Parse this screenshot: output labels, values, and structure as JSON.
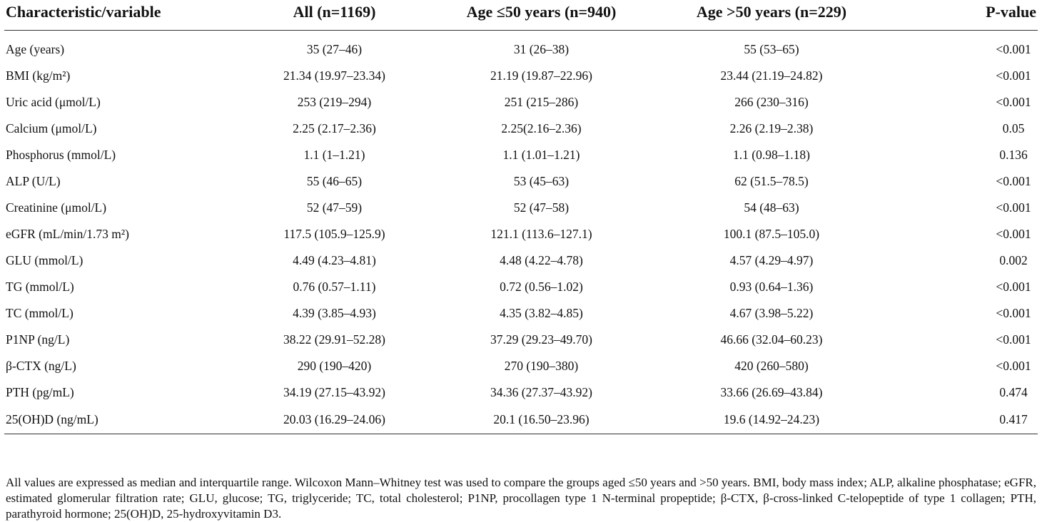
{
  "table": {
    "headers": [
      "Characteristic/variable",
      "All (n=1169)",
      "Age ≤50 years (n=940)",
      "Age >50 years (n=229)",
      "P-value"
    ],
    "rows": [
      {
        "label": "Age (years)",
        "all": "35 (27–46)",
        "le50": "31 (26–38)",
        "gt50": "55 (53–65)",
        "p": "<0.001"
      },
      {
        "label": "BMI (kg/m²)",
        "all": "21.34 (19.97–23.34)",
        "le50": "21.19 (19.87–22.96)",
        "gt50": "23.44 (21.19–24.82)",
        "p": "<0.001"
      },
      {
        "label": "Uric acid (μmol/L)",
        "all": "253 (219–294)",
        "le50": "251 (215–286)",
        "gt50": "266 (230–316)",
        "p": "<0.001"
      },
      {
        "label": "Calcium (μmol/L)",
        "all": "2.25 (2.17–2.36)",
        "le50": "2.25(2.16–2.36)",
        "gt50": "2.26 (2.19–2.38)",
        "p": "0.05"
      },
      {
        "label": "Phosphorus (mmol/L)",
        "all": "1.1 (1–1.21)",
        "le50": "1.1 (1.01–1.21)",
        "gt50": "1.1 (0.98–1.18)",
        "p": "0.136"
      },
      {
        "label": "ALP (U/L)",
        "all": "55 (46–65)",
        "le50": "53 (45–63)",
        "gt50": "62 (51.5–78.5)",
        "p": "<0.001"
      },
      {
        "label": "Creatinine (μmol/L)",
        "all": "52 (47–59)",
        "le50": "52 (47–58)",
        "gt50": "54 (48–63)",
        "p": "<0.001"
      },
      {
        "label": "eGFR (mL/min/1.73 m²)",
        "all": "117.5 (105.9–125.9)",
        "le50": "121.1 (113.6–127.1)",
        "gt50": "100.1 (87.5–105.0)",
        "p": "<0.001"
      },
      {
        "label": "GLU (mmol/L)",
        "all": "4.49 (4.23–4.81)",
        "le50": "4.48 (4.22–4.78)",
        "gt50": "4.57 (4.29–4.97)",
        "p": "0.002"
      },
      {
        "label": "TG (mmol/L)",
        "all": "0.76 (0.57–1.11)",
        "le50": "0.72 (0.56–1.02)",
        "gt50": "0.93 (0.64–1.36)",
        "p": "<0.001"
      },
      {
        "label": "TC (mmol/L)",
        "all": "4.39 (3.85–4.93)",
        "le50": "4.35 (3.82–4.85)",
        "gt50": "4.67 (3.98–5.22)",
        "p": "<0.001"
      },
      {
        "label": "P1NP (ng/L)",
        "all": "38.22 (29.91–52.28)",
        "le50": "37.29 (29.23–49.70)",
        "gt50": "46.66 (32.04–60.23)",
        "p": "<0.001"
      },
      {
        "label": "β-CTX (ng/L)",
        "all": "290 (190–420)",
        "le50": "270 (190–380)",
        "gt50": "420 (260–580)",
        "p": "<0.001"
      },
      {
        "label": "PTH (pg/mL)",
        "all": "34.19 (27.15–43.92)",
        "le50": "34.36 (27.37–43.92)",
        "gt50": "33.66 (26.69–43.84)",
        "p": "0.474"
      },
      {
        "label": "25(OH)D (ng/mL)",
        "all": "20.03 (16.29–24.06)",
        "le50": "20.1 (16.50–23.96)",
        "gt50": "19.6 (14.92–24.23)",
        "p": "0.417"
      }
    ]
  },
  "footnote": "All values are expressed as median and interquartile range. Wilcoxon Mann–Whitney test was used to compare the groups aged ≤50 years and >50 years. BMI, body mass index; ALP, alkaline phosphatase; eGFR, estimated glomerular filtration rate; GLU, glucose; TG, triglyceride; TC, total cholesterol; P1NP, procollagen type 1 N-terminal propeptide; β-CTX, β-cross-linked C-telopeptide of type 1 collagen; PTH, parathyroid hormone; 25(OH)D, 25-hydroxyvitamin D3."
}
